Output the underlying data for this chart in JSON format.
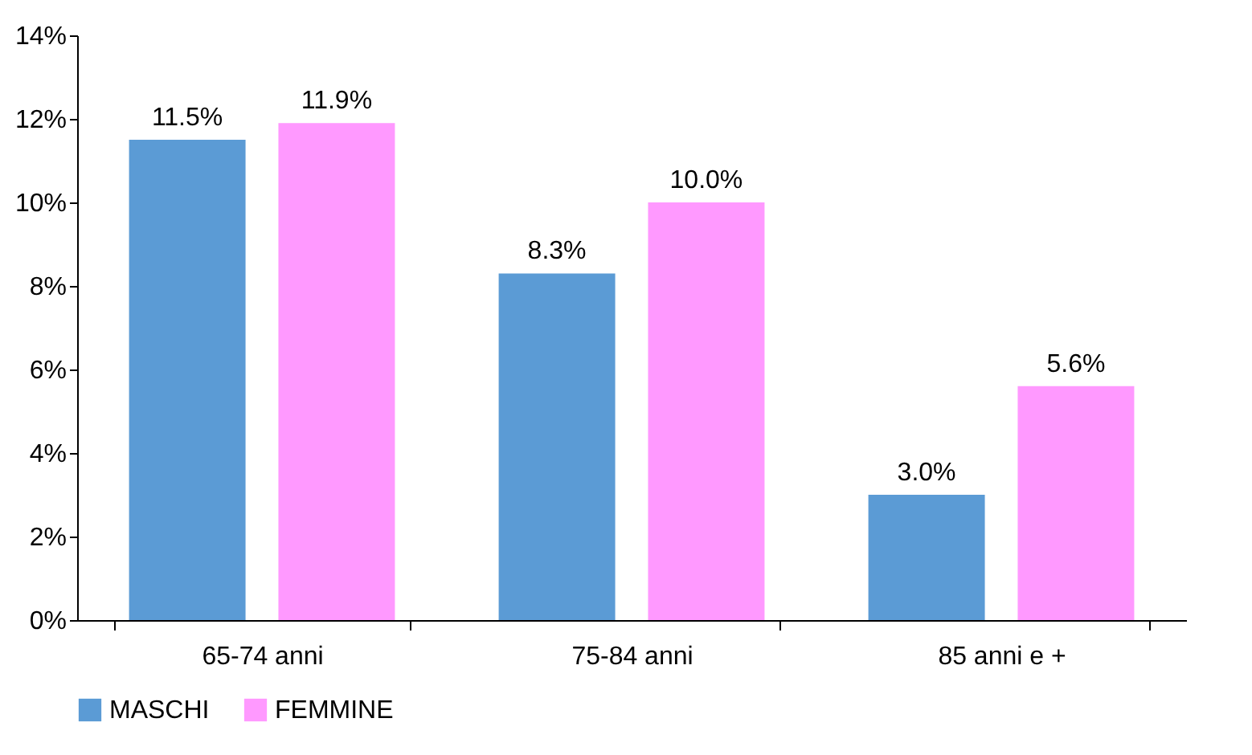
{
  "chart_data": {
    "type": "bar",
    "categories": [
      "65-74 anni",
      "75-84 anni",
      "85 anni e +"
    ],
    "series": [
      {
        "name": "MASCHI",
        "color": "#5b9bd5",
        "values": [
          11.5,
          8.3,
          3.0
        ],
        "value_labels": [
          "11.5%",
          "8.3%",
          "3.0%"
        ]
      },
      {
        "name": "FEMMINE",
        "color": "#ff99ff",
        "values": [
          11.9,
          10.0,
          5.6
        ],
        "value_labels": [
          "11.9%",
          "10.0%",
          "5.6%"
        ]
      }
    ],
    "ylim": [
      0,
      14
    ],
    "yticks": [
      {
        "value": 0,
        "label": "0%"
      },
      {
        "value": 2,
        "label": "2%"
      },
      {
        "value": 4,
        "label": "4%"
      },
      {
        "value": 6,
        "label": "6%"
      },
      {
        "value": 8,
        "label": "8%"
      },
      {
        "value": 10,
        "label": "10%"
      },
      {
        "value": 12,
        "label": "12%"
      },
      {
        "value": 14,
        "label": "14%"
      }
    ],
    "grid": false,
    "legend": "bottom"
  }
}
